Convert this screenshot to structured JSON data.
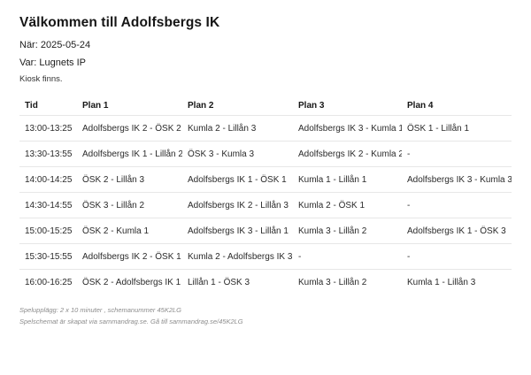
{
  "page": {
    "title": "Välkommen till Adolfsbergs IK",
    "date_line": "När: 2025-05-24",
    "venue_line": "Var: Lugnets IP",
    "kiosk_note": "Kiosk finns."
  },
  "schedule": {
    "columns": [
      "Tid",
      "Plan 1",
      "Plan 2",
      "Plan 3",
      "Plan 4"
    ],
    "rows": [
      [
        "13:00-13:25",
        "Adolfsbergs IK 2 - ÖSK 2",
        "Kumla 2 - Lillån 3",
        "Adolfsbergs IK 3 - Kumla 1",
        "ÖSK 1 - Lillån 1"
      ],
      [
        "13:30-13:55",
        "Adolfsbergs IK 1 - Lillån 2",
        "ÖSK 3 - Kumla 3",
        "Adolfsbergs IK 2 - Kumla 2",
        "-"
      ],
      [
        "14:00-14:25",
        "ÖSK 2 - Lillån 3",
        "Adolfsbergs IK 1 - ÖSK 1",
        "Kumla 1 - Lillån 1",
        "Adolfsbergs IK 3 - Kumla 3"
      ],
      [
        "14:30-14:55",
        "ÖSK 3 - Lillån 2",
        "Adolfsbergs IK 2 - Lillån 3",
        "Kumla 2 - ÖSK 1",
        "-"
      ],
      [
        "15:00-15:25",
        "ÖSK 2 - Kumla 1",
        "Adolfsbergs IK 3 - Lillån 1",
        "Kumla 3 - Lillån 2",
        "Adolfsbergs IK 1 - ÖSK 3"
      ],
      [
        "15:30-15:55",
        "Adolfsbergs IK 2 - ÖSK 1",
        "Kumla 2 - Adolfsbergs IK 3",
        "-",
        "-"
      ],
      [
        "16:00-16:25",
        "ÖSK 2 - Adolfsbergs IK 1",
        "Lillån 1 - ÖSK 3",
        "Kumla 3 - Lillån 2",
        "Kumla 1 - Lillån 3"
      ]
    ]
  },
  "footer": {
    "line1": "Spelupplägg: 2 x 10 minuter , schemanummer 45K2LG",
    "line2": "Spelschemat är skapat via sammandrag.se. Gå till sammandrag.se/45K2LG"
  },
  "colors": {
    "background": "#ffffff",
    "text": "#1c1c1c",
    "muted": "#8c8c8c",
    "divider": "#e7e7e7"
  }
}
